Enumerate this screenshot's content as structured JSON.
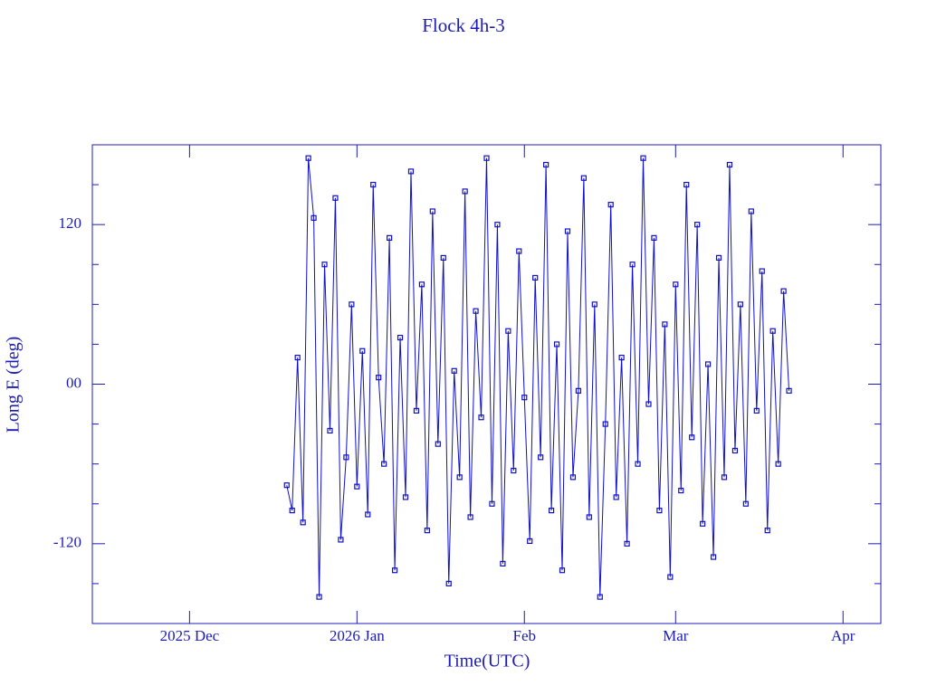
{
  "chart_data": {
    "type": "line",
    "title": "Flock 4h-3",
    "xlabel": "Time(UTC)",
    "ylabel": "Long E (deg)",
    "color": "#1010c8",
    "xlim": [
      12,
      158
    ],
    "xticks": [
      {
        "value": 30,
        "label": "2025 Dec"
      },
      {
        "value": 61,
        "label": "2026 Jan"
      },
      {
        "value": 92,
        "label": "Feb"
      },
      {
        "value": 120,
        "label": "Mar"
      },
      {
        "value": 151,
        "label": "Apr"
      }
    ],
    "ylim": [
      -180,
      180
    ],
    "yticks": [
      -120,
      {
        "value": 0,
        "label": "00"
      },
      120
    ],
    "yminorticks": [
      -150,
      -90,
      -60,
      -30,
      30,
      60,
      90,
      150
    ],
    "x": [
      48,
      49,
      50,
      51,
      52,
      53,
      54,
      55,
      56,
      57,
      58,
      59,
      60,
      61,
      62,
      63,
      64,
      65,
      66,
      67,
      68,
      69,
      70,
      71,
      72,
      73,
      74,
      75,
      76,
      77,
      78,
      79,
      80,
      81,
      82,
      83,
      84,
      85,
      86,
      87,
      88,
      89,
      90,
      91,
      92,
      93,
      94,
      95,
      96,
      97,
      98,
      99,
      100,
      101,
      102,
      103,
      104,
      105,
      106,
      107,
      108,
      109,
      110,
      111,
      112,
      113,
      114,
      115,
      116,
      117,
      118,
      119,
      120,
      121,
      122,
      123,
      124,
      125,
      126,
      127,
      128,
      129,
      130,
      131,
      132,
      133,
      134,
      135,
      136,
      137,
      138,
      139,
      140,
      141
    ],
    "series": [
      {
        "name": "Long E",
        "color": "#1010c8",
        "values": [
          -76,
          -95,
          20,
          -104,
          170,
          125,
          -160,
          90,
          -35,
          140,
          -117,
          -55,
          60,
          -77,
          25,
          -98,
          150,
          5,
          -60,
          110,
          -140,
          35,
          -85,
          160,
          -20,
          75,
          -110,
          130,
          -45,
          95,
          -150,
          10,
          -70,
          145,
          -100,
          55,
          -25,
          170,
          -90,
          120,
          -135,
          40,
          -65,
          100,
          -10,
          -118,
          80,
          -55,
          165,
          -95,
          30,
          -140,
          115,
          -70,
          -5,
          155,
          -100,
          60,
          -160,
          -30,
          135,
          -85,
          20,
          -120,
          90,
          -60,
          170,
          -15,
          110,
          -95,
          45,
          -145,
          75,
          -80,
          150,
          -40,
          120,
          -105,
          15,
          -130,
          95,
          -70,
          165,
          -50,
          60,
          -90,
          130,
          -20,
          85,
          -110,
          40,
          -60,
          70,
          -5
        ]
      }
    ]
  }
}
